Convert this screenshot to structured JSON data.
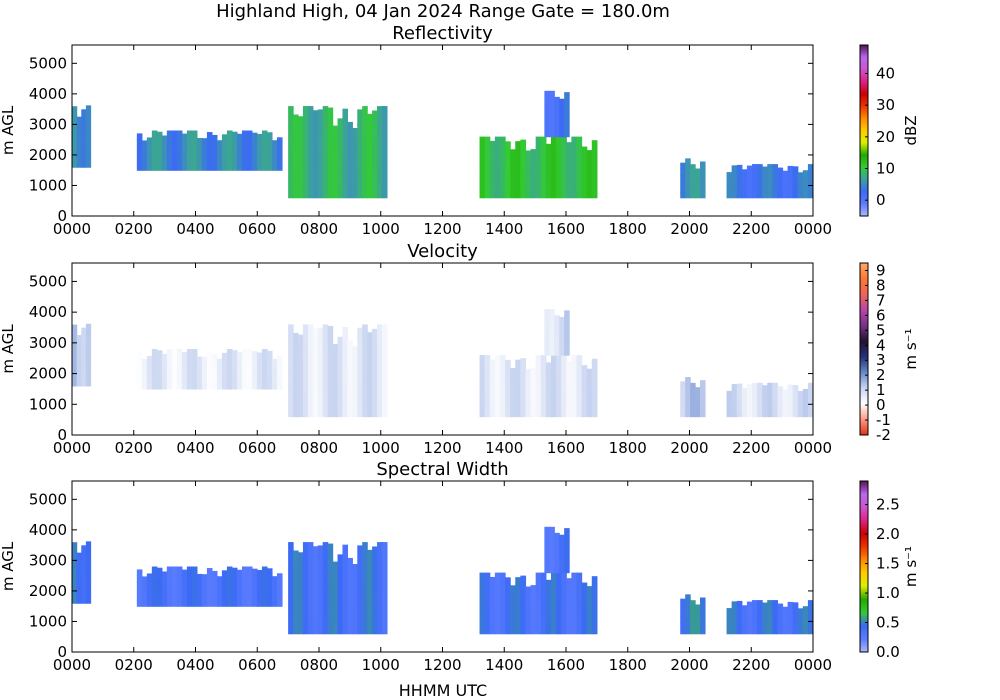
{
  "figure": {
    "title": "Highland High, 04 Jan 2024 Range Gate = 180.0m",
    "xlabel": "HHMM UTC"
  },
  "chart_data": [
    {
      "type": "heatmap",
      "title": "Reflectivity",
      "xlabel": "",
      "ylabel": "m AGL",
      "x_ticks": [
        "0000",
        "0200",
        "0400",
        "0600",
        "0800",
        "1000",
        "1200",
        "1400",
        "1600",
        "1800",
        "2000",
        "2200",
        "0000"
      ],
      "x_range_hours": [
        0,
        24
      ],
      "ylim": [
        0,
        5600
      ],
      "y_ticks": [
        0,
        1000,
        2000,
        3000,
        4000,
        5000
      ],
      "colorbar": {
        "label": "dBZ",
        "range": [
          -5,
          49
        ],
        "ticks": [
          "0",
          "10",
          "20",
          "30",
          "40"
        ],
        "tick_values": [
          0,
          10,
          20,
          30,
          40
        ],
        "colors": [
          "#aab8ff",
          "#5a7cff",
          "#3b6af5",
          "#3ca0a0",
          "#33cc33",
          "#22aa00",
          "#ddee00",
          "#ffcc00",
          "#ff8800",
          "#ee3300",
          "#cc0000",
          "#dd2288",
          "#cc55cc",
          "#bb66ee",
          "#551155"
        ]
      },
      "echoes": [
        {
          "x": [
            0,
            0.6
          ],
          "y": [
            1600,
            3700
          ],
          "val": 6
        },
        {
          "x": [
            2.1,
            6.8
          ],
          "y": [
            1500,
            2800
          ],
          "val": 5
        },
        {
          "x": [
            7.0,
            10.2
          ],
          "y": [
            600,
            3600
          ],
          "val": 8
        },
        {
          "x": [
            13.2,
            17.0
          ],
          "y": [
            600,
            2600
          ],
          "val": 10
        },
        {
          "x": [
            15.3,
            16.1
          ],
          "y": [
            2600,
            4100
          ],
          "val": 2
        },
        {
          "x": [
            19.7,
            20.5
          ],
          "y": [
            600,
            1900
          ],
          "val": 5
        },
        {
          "x": [
            21.2,
            24.0
          ],
          "y": [
            600,
            1700
          ],
          "val": 3
        }
      ]
    },
    {
      "type": "heatmap",
      "title": "Velocity",
      "xlabel": "",
      "ylabel": "m AGL",
      "x_ticks": [
        "0000",
        "0200",
        "0400",
        "0600",
        "0800",
        "1000",
        "1200",
        "1400",
        "1600",
        "1800",
        "2000",
        "2200",
        "0000"
      ],
      "x_range_hours": [
        0,
        24
      ],
      "ylim": [
        0,
        5600
      ],
      "y_ticks": [
        0,
        1000,
        2000,
        3000,
        4000,
        5000
      ],
      "colorbar": {
        "label": "m s⁻¹",
        "range": [
          -2,
          9.5
        ],
        "ticks": [
          "-2",
          "-1",
          "0",
          "1",
          "2",
          "3",
          "4",
          "5",
          "6",
          "7",
          "8",
          "9"
        ],
        "tick_values": [
          -2,
          -1,
          0,
          1,
          2,
          3,
          4,
          5,
          6,
          7,
          8,
          9
        ],
        "colors": [
          "#dd3311",
          "#ff9988",
          "#ffffff",
          "#c8d4f0",
          "#6688cc",
          "#223377",
          "#221133",
          "#773388",
          "#bb44aa",
          "#ee6655",
          "#ff7733",
          "#ffaa66"
        ]
      },
      "echoes": [
        {
          "x": [
            0,
            0.6
          ],
          "y": [
            1600,
            3700
          ],
          "val": 1.5
        },
        {
          "x": [
            2.1,
            6.8
          ],
          "y": [
            1500,
            2800
          ],
          "val": 0.6
        },
        {
          "x": [
            7.0,
            10.2
          ],
          "y": [
            600,
            3600
          ],
          "val": 0.7
        },
        {
          "x": [
            13.2,
            17.0
          ],
          "y": [
            600,
            2600
          ],
          "val": 0.7
        },
        {
          "x": [
            15.3,
            16.1
          ],
          "y": [
            2600,
            4100
          ],
          "val": 0.9
        },
        {
          "x": [
            19.7,
            20.5
          ],
          "y": [
            600,
            1900
          ],
          "val": 1.2
        },
        {
          "x": [
            21.2,
            24.0
          ],
          "y": [
            600,
            1700
          ],
          "val": 0.8
        }
      ]
    },
    {
      "type": "heatmap",
      "title": "Spectral Width",
      "xlabel": "HHMM UTC",
      "ylabel": "m AGL",
      "x_ticks": [
        "0000",
        "0200",
        "0400",
        "0600",
        "0800",
        "1000",
        "1200",
        "1400",
        "1600",
        "1800",
        "2000",
        "2200",
        "0000"
      ],
      "x_range_hours": [
        0,
        24
      ],
      "ylim": [
        0,
        5600
      ],
      "y_ticks": [
        0,
        1000,
        2000,
        3000,
        4000,
        5000
      ],
      "colorbar": {
        "label": "m s⁻¹",
        "range": [
          0,
          2.9
        ],
        "ticks": [
          "0.0",
          "0.5",
          "1.0",
          "1.5",
          "2.0",
          "2.5"
        ],
        "tick_values": [
          0,
          0.5,
          1.0,
          1.5,
          2.0,
          2.5
        ],
        "colors": [
          "#aab8ff",
          "#5a7cff",
          "#3b6af5",
          "#33cc33",
          "#22aa00",
          "#ddee00",
          "#ffcc00",
          "#ff8800",
          "#ee3300",
          "#cc0000",
          "#dd2288",
          "#cc55cc",
          "#bb66ee",
          "#551155"
        ]
      },
      "echoes": [
        {
          "x": [
            0,
            0.6
          ],
          "y": [
            1600,
            3700
          ],
          "val": 0.5
        },
        {
          "x": [
            2.1,
            6.8
          ],
          "y": [
            1500,
            2800
          ],
          "val": 0.35
        },
        {
          "x": [
            7.0,
            10.2
          ],
          "y": [
            600,
            3600
          ],
          "val": 0.4
        },
        {
          "x": [
            13.2,
            17.0
          ],
          "y": [
            600,
            2600
          ],
          "val": 0.38
        },
        {
          "x": [
            15.3,
            16.1
          ],
          "y": [
            2600,
            4100
          ],
          "val": 0.35
        },
        {
          "x": [
            19.7,
            20.5
          ],
          "y": [
            600,
            1900
          ],
          "val": 0.45
        },
        {
          "x": [
            21.2,
            24.0
          ],
          "y": [
            600,
            1700
          ],
          "val": 0.4
        }
      ]
    }
  ]
}
